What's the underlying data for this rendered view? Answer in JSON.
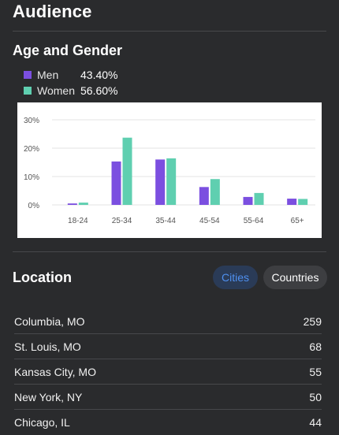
{
  "header": {
    "title": "Audience"
  },
  "age_gender": {
    "title": "Age and Gender",
    "legend": [
      {
        "label": "Men",
        "value": "43.40%",
        "color": "#7b4fe0"
      },
      {
        "label": "Women",
        "value": "56.60%",
        "color": "#5fcfb0"
      }
    ]
  },
  "chart_data": {
    "type": "bar",
    "categories": [
      "18-24",
      "25-34",
      "35-44",
      "45-54",
      "55-64",
      "65+"
    ],
    "series": [
      {
        "name": "Men",
        "values": [
          0.5,
          15.3,
          16.0,
          6.3,
          2.8,
          2.2
        ],
        "color": "#7b4fe0"
      },
      {
        "name": "Women",
        "values": [
          0.8,
          23.7,
          16.4,
          9.1,
          4.2,
          2.1
        ],
        "color": "#5fcfb0"
      }
    ],
    "yticks": [
      "30%",
      "20%",
      "10%",
      "0%"
    ],
    "ylim": [
      0,
      30
    ],
    "grid": true
  },
  "location": {
    "title": "Location",
    "tabs": {
      "cities": "Cities",
      "countries": "Countries"
    },
    "rows": [
      {
        "name": "Columbia, MO",
        "count": "259"
      },
      {
        "name": "St. Louis, MO",
        "count": "68"
      },
      {
        "name": "Kansas City, MO",
        "count": "55"
      },
      {
        "name": "New York, NY",
        "count": "50"
      },
      {
        "name": "Chicago, IL",
        "count": "44"
      }
    ]
  }
}
